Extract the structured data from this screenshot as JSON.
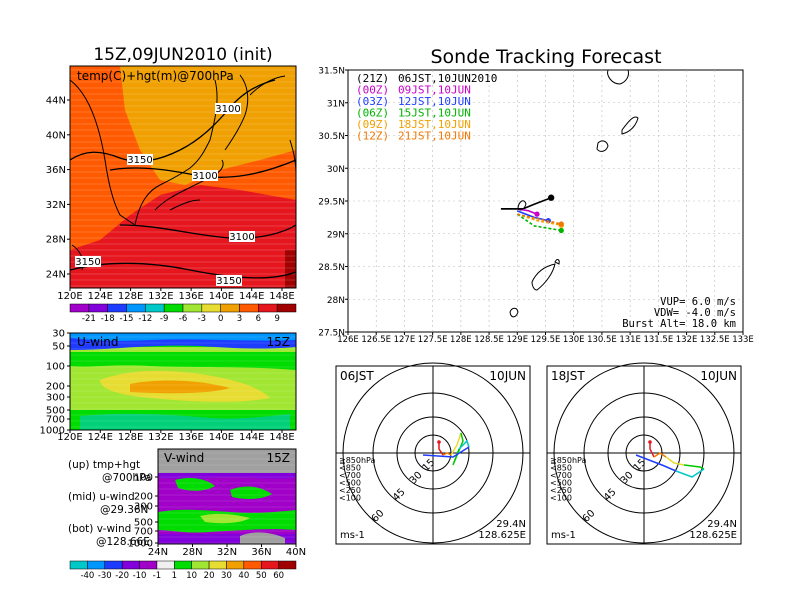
{
  "chart_data": [
    {
      "panel": "temp_hgt_map",
      "type": "heatmap",
      "title": "15Z,09JUN2010 (init)",
      "label": "temp(C)+hgt(m)@700hPa",
      "x_ticks": [
        "120E",
        "124E",
        "128E",
        "132E",
        "136E",
        "140E",
        "144E",
        "148E"
      ],
      "y_ticks": [
        "24N",
        "28N",
        "32N",
        "36N",
        "40N",
        "44N"
      ],
      "contours": [
        "3100",
        "3150",
        "3100",
        "3100",
        "3150",
        "3150"
      ],
      "colorbar": [
        "-21",
        "-18",
        "-15",
        "-12",
        "-9",
        "-6",
        "-3",
        "0",
        "3",
        "6",
        "9"
      ],
      "colorbar_colors": [
        "#a000c8",
        "#8200dc",
        "#1e3cff",
        "#0096ff",
        "#00c8c8",
        "#00dc00",
        "#a0e632",
        "#e6dc32",
        "#f0a000",
        "#ff5a00",
        "#e6161e",
        "#a00000"
      ]
    },
    {
      "panel": "u_wind_section",
      "type": "heatmap",
      "label": "U-wind",
      "time_label": "15Z",
      "x_ticks": [
        "120E",
        "124E",
        "128E",
        "132E",
        "136E",
        "140E",
        "144E",
        "148E"
      ],
      "y_ticks": [
        "30",
        "50",
        "100",
        "200",
        "300",
        "500",
        "700",
        "1000"
      ]
    },
    {
      "panel": "v_wind_section",
      "type": "heatmap",
      "label": "V-wind",
      "time_label": "15Z",
      "x_ticks": [
        "24N",
        "28N",
        "32N",
        "36N",
        "40N"
      ],
      "y_ticks": [
        "100",
        "200",
        "300",
        "500",
        "700",
        "1000"
      ],
      "colorbar": [
        "-40",
        "-30",
        "-20",
        "-10",
        "-1",
        "1",
        "10",
        "20",
        "30",
        "40",
        "50",
        "60"
      ],
      "colorbar_colors": [
        "#00c8c8",
        "#0096ff",
        "#1e3cff",
        "#8200dc",
        "#a000c8",
        "#f0f0f0",
        "#00dc00",
        "#a0e632",
        "#e6dc32",
        "#f0a000",
        "#ff5a00",
        "#e6161e",
        "#a00000"
      ]
    },
    {
      "panel": "sonde_track",
      "type": "line",
      "title": "Sonde Tracking Forecast",
      "xlim": [
        126,
        133
      ],
      "ylim": [
        27.5,
        31.5
      ],
      "x_ticks": [
        "126E",
        "126.5E",
        "127E",
        "127.5E",
        "128E",
        "128.5E",
        "129E",
        "129.5E",
        "130E",
        "130.5E",
        "131E",
        "131.5E",
        "132E",
        "132.5E",
        "133E"
      ],
      "y_ticks": [
        "27.5N",
        "28N",
        "28.5N",
        "29N",
        "29.5N",
        "30N",
        "30.5N",
        "31N",
        "31.5N"
      ],
      "legend": [
        {
          "tag": "(21Z)",
          "time": "06JST,10JUN2010",
          "color": "#000000"
        },
        {
          "tag": "(00Z)",
          "time": "09JST,10JUN",
          "color": "#c800c8"
        },
        {
          "tag": "(03Z)",
          "time": "12JST,10JUN",
          "color": "#1e3cff"
        },
        {
          "tag": "(06Z)",
          "time": "15JST,10JUN",
          "color": "#00b400"
        },
        {
          "tag": "(09Z)",
          "time": "18JST,10JUN",
          "color": "#f0a000"
        },
        {
          "tag": "(12Z)",
          "time": "21JST,10JUN",
          "color": "#f07800"
        }
      ],
      "series": [
        {
          "color": "#000000",
          "points": [
            [
              129.1,
              29.38
            ],
            [
              129.3,
              29.45
            ],
            [
              129.6,
              29.55
            ]
          ]
        },
        {
          "color": "#c800c8",
          "points": [
            [
              129.0,
              29.38
            ],
            [
              129.2,
              29.35
            ],
            [
              129.35,
              29.3
            ]
          ]
        },
        {
          "color": "#1e3cff",
          "points": [
            [
              129.0,
              29.35
            ],
            [
              129.3,
              29.25
            ],
            [
              129.55,
              29.2
            ]
          ]
        },
        {
          "color": "#00b400",
          "points": [
            [
              129.0,
              29.3
            ],
            [
              129.3,
              29.12
            ],
            [
              129.78,
              29.05
            ]
          ]
        },
        {
          "color": "#f0a000",
          "points": [
            [
              129.0,
              29.3
            ],
            [
              129.35,
              29.2
            ],
            [
              129.78,
              29.13
            ]
          ]
        },
        {
          "color": "#f07800",
          "points": [
            [
              129.0,
              29.3
            ],
            [
              129.4,
              29.22
            ],
            [
              129.78,
              29.15
            ]
          ]
        }
      ],
      "info": {
        "vup": "VUP=  6.0  m/s",
        "vdw": "VDW= -4.0  m/s",
        "burst": "Burst Alt= 18.0  km"
      }
    },
    {
      "panel": "hodograph_06",
      "type": "line",
      "label_left": "06JST",
      "label_right": "10JUN",
      "ring_labels": [
        "15",
        "30",
        "45",
        "60"
      ],
      "levels": [
        {
          "label": "≧850hPa",
          "color": "#e6161e"
        },
        {
          "label": "<850",
          "color": "#f07800"
        },
        {
          "label": "<700",
          "color": "#e6dc32"
        },
        {
          "label": "<500",
          "color": "#00c800"
        },
        {
          "label": "<250",
          "color": "#00c8c8"
        },
        {
          "label": "<100",
          "color": "#1e3cff"
        }
      ],
      "unit": "ms-1",
      "lat": "29.4N",
      "lon": "128.625E"
    },
    {
      "panel": "hodograph_18",
      "type": "line",
      "label_left": "18JST",
      "label_right": "10JUN",
      "ring_labels": [
        "15",
        "30",
        "45",
        "60"
      ],
      "levels": [
        {
          "label": "≧850hPa",
          "color": "#e6161e"
        },
        {
          "label": "<850",
          "color": "#f07800"
        },
        {
          "label": "<700",
          "color": "#e6dc32"
        },
        {
          "label": "<500",
          "color": "#00c800"
        },
        {
          "label": "<250",
          "color": "#00c8c8"
        },
        {
          "label": "<100",
          "color": "#1e3cff"
        }
      ],
      "unit": "ms-1",
      "lat": "29.4N",
      "lon": "128.625E"
    }
  ],
  "notes": {
    "up": "(up) tmp+hgt",
    "up2": "@700hPa",
    "mid": "(mid) u-wind",
    "mid2": "@29.36N",
    "bot": "(bot) v-wind",
    "bot2": "@128.66E"
  }
}
